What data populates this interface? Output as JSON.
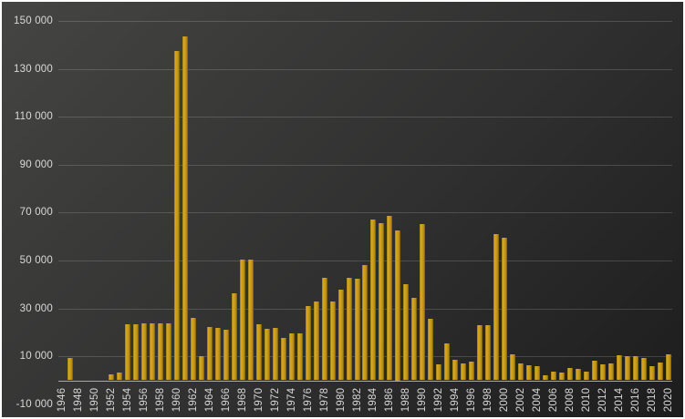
{
  "chart_data": {
    "type": "bar",
    "title": "",
    "xlabel": "",
    "ylabel": "",
    "legend": null,
    "grid": true,
    "ylim": [
      -10000,
      150000
    ],
    "y_ticks": [
      {
        "value": 150000,
        "label": "150 000"
      },
      {
        "value": 130000,
        "label": "130 000"
      },
      {
        "value": 110000,
        "label": "110 000"
      },
      {
        "value": 90000,
        "label": "90 000"
      },
      {
        "value": 70000,
        "label": "70 000"
      },
      {
        "value": 50000,
        "label": "50 000"
      },
      {
        "value": 30000,
        "label": "30 000"
      },
      {
        "value": 10000,
        "label": "10 000"
      },
      {
        "value": -10000,
        "label": "-10 000"
      }
    ],
    "x_tick_years": [
      1946,
      1948,
      1950,
      1952,
      1954,
      1956,
      1958,
      1960,
      1962,
      1964,
      1966,
      1968,
      1970,
      1972,
      1974,
      1976,
      1978,
      1980,
      1982,
      1984,
      1986,
      1988,
      1990,
      1992,
      1994,
      1996,
      1998,
      2000,
      2002,
      2004,
      2006,
      2008,
      2010,
      2012,
      2014,
      2016,
      2018,
      2020
    ],
    "categories": [
      1946,
      1947,
      1948,
      1949,
      1950,
      1951,
      1952,
      1953,
      1954,
      1955,
      1956,
      1957,
      1958,
      1959,
      1960,
      1961,
      1962,
      1963,
      1964,
      1965,
      1966,
      1967,
      1968,
      1969,
      1970,
      1971,
      1972,
      1973,
      1974,
      1975,
      1976,
      1977,
      1978,
      1979,
      1980,
      1981,
      1982,
      1983,
      1984,
      1985,
      1986,
      1987,
      1988,
      1989,
      1990,
      1991,
      1992,
      1993,
      1994,
      1995,
      1996,
      1997,
      1998,
      1999,
      2000,
      2001,
      2002,
      2003,
      2004,
      2005,
      2006,
      2007,
      2008,
      2009,
      2010,
      2011,
      2012,
      2013,
      2014,
      2015,
      2016,
      2017,
      2018,
      2019,
      2020
    ],
    "values": [
      0,
      9500,
      0,
      0,
      0,
      0,
      2500,
      3400,
      23500,
      23500,
      23600,
      23800,
      23800,
      23800,
      137300,
      143500,
      26200,
      10100,
      22300,
      21800,
      21100,
      36300,
      50300,
      50300,
      23400,
      21400,
      22000,
      17600,
      19500,
      19400,
      30900,
      32900,
      42900,
      32900,
      37900,
      42900,
      42400,
      48000,
      67000,
      65500,
      68500,
      62500,
      40000,
      34400,
      65300,
      25500,
      6600,
      15400,
      8700,
      7000,
      7800,
      23000,
      23000,
      61200,
      59500,
      11000,
      7200,
      6200,
      5800,
      2000,
      3600,
      3200,
      5300,
      4700,
      3700,
      8000,
      6500,
      7000,
      10500,
      10000,
      10000,
      9300,
      6000,
      7400,
      11000
    ],
    "colors": {
      "bar": "#c89c1d",
      "bar_edge_dark": "#6f560b",
      "background_top_left": "#454543",
      "background_bottom_right": "#1d1d1d",
      "gridline": "rgba(255,255,255,0.16)",
      "zero_axis": "#a8a8a8",
      "tick_text": "#d9d9d9",
      "frame_border": "#ffffff"
    },
    "layout": {
      "plot_left": 62,
      "plot_right": 735,
      "y_of_zero": 415.5,
      "y_of_max": 21,
      "x_label_center_y": 437,
      "y_label_right_edge": 56,
      "bar_width_ratio": 0.67
    }
  }
}
